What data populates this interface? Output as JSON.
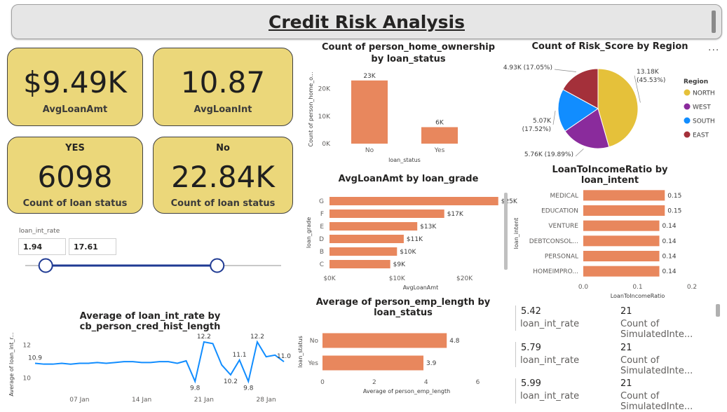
{
  "title": "Credit Risk Analysis",
  "cards": [
    {
      "value": "$9.49K",
      "label": "AvgLoanAmt"
    },
    {
      "value": "10.87",
      "label": "AvgLoanInt"
    },
    {
      "header": "YES",
      "value": "6098",
      "label": "Count of loan status"
    },
    {
      "header": "No",
      "value": "22.84K",
      "label": "Count of loan status"
    }
  ],
  "slider": {
    "label": "loan_int_rate",
    "min_value": "1.94",
    "max_value": "17.61",
    "min_fraction": 0.08,
    "max_fraction": 0.75
  },
  "more_options": "...",
  "kv_list": [
    {
      "value1": "5.42",
      "label1": "loan_int_rate",
      "value2": "21",
      "label2": "Count of SimulatedInte..."
    },
    {
      "value1": "5.79",
      "label1": "loan_int_rate",
      "value2": "21",
      "label2": "Count of SimulatedInte..."
    },
    {
      "value1": "5.99",
      "label1": "loan_int_rate",
      "value2": "21",
      "label2": "Count of SimulatedInte..."
    }
  ],
  "colors": {
    "bar": "#e8875d",
    "line": "#118dff",
    "card": "#ebd77a",
    "north": "#e5c13a",
    "west": "#8a2b9c",
    "south": "#118dff",
    "east": "#a4303a"
  },
  "chart_data": [
    {
      "id": "home_ownership",
      "type": "bar",
      "title": "Count of person_home_ownership by loan_status",
      "xlabel": "loan_status",
      "ylabel": "Count of person_home_o...",
      "categories": [
        "No",
        "Yes"
      ],
      "values": [
        23000,
        6000
      ],
      "data_labels": [
        "23K",
        "6K"
      ],
      "ylim": [
        0,
        25000
      ],
      "yticks": [
        0,
        10000,
        20000
      ],
      "ytick_labels": [
        "0K",
        "10K",
        "20K"
      ]
    },
    {
      "id": "risk_region",
      "type": "pie",
      "title": "Count of Risk_Score by Region",
      "legend_title": "Region",
      "legend_position": "right",
      "slices": [
        {
          "name": "NORTH",
          "value": 13180,
          "label": "13.18K (45.53%)"
        },
        {
          "name": "WEST",
          "value": 5760,
          "label": "5.76K (19.89%)"
        },
        {
          "name": "SOUTH",
          "value": 5070,
          "label": "5.07K (17.52%)"
        },
        {
          "name": "EAST",
          "value": 4930,
          "label": "4.93K (17.05%)"
        }
      ]
    },
    {
      "id": "loan_grade",
      "type": "bar",
      "orientation": "horizontal",
      "title": "AvgLoanAmt by loan_grade",
      "xlabel": "AvgLoanAmt",
      "ylabel": "loan_grade",
      "categories": [
        "G",
        "F",
        "E",
        "D",
        "B",
        "C"
      ],
      "values": [
        25000,
        17000,
        13000,
        11000,
        10000,
        9000
      ],
      "data_labels": [
        "$25K",
        "$17K",
        "$13K",
        "$11K",
        "$10K",
        "$9K"
      ],
      "xlim": [
        0,
        27000
      ],
      "xticks": [
        0,
        10000,
        20000
      ],
      "xtick_labels": [
        "$0K",
        "$10K",
        "$20K"
      ]
    },
    {
      "id": "loan_intent",
      "type": "bar",
      "orientation": "horizontal",
      "title": "LoanToIncomeRatio by loan_intent",
      "xlabel": "LoanToIncomeRatio",
      "ylabel": "loan_intent",
      "categories": [
        "MEDICAL",
        "EDUCATION",
        "VENTURE",
        "DEBTCONSOL...",
        "PERSONAL",
        "HOMEIMPRO..."
      ],
      "values": [
        0.15,
        0.15,
        0.14,
        0.14,
        0.14,
        0.14
      ],
      "data_labels": [
        "0.15",
        "0.15",
        "0.14",
        "0.14",
        "0.14",
        "0.14"
      ],
      "xlim": [
        0,
        0.2
      ],
      "xticks": [
        0,
        0.1,
        0.2
      ],
      "xtick_labels": [
        "0.0",
        "0.1",
        "0.2"
      ]
    },
    {
      "id": "cred_hist",
      "type": "line",
      "title": "Average of loan_int_rate by cb_person_cred_hist_length",
      "ylabel": "Average of loan_int_r...",
      "x": [
        "02 Jan",
        "03 Jan",
        "04 Jan",
        "05 Jan",
        "06 Jan",
        "07 Jan",
        "08 Jan",
        "09 Jan",
        "10 Jan",
        "11 Jan",
        "12 Jan",
        "13 Jan",
        "14 Jan",
        "15 Jan",
        "16 Jan",
        "17 Jan",
        "18 Jan",
        "19 Jan",
        "20 Jan",
        "21 Jan",
        "22 Jan",
        "23 Jan",
        "24 Jan",
        "25 Jan",
        "26 Jan",
        "27 Jan",
        "28 Jan",
        "29 Jan",
        "30 Jan"
      ],
      "values": [
        10.9,
        10.85,
        10.85,
        10.9,
        10.85,
        10.9,
        10.9,
        10.95,
        10.9,
        10.95,
        11.0,
        11.0,
        10.95,
        10.95,
        11.0,
        11.0,
        10.9,
        11.05,
        9.8,
        12.2,
        12.1,
        10.8,
        10.2,
        11.1,
        9.8,
        12.2,
        11.3,
        11.4,
        11.0
      ],
      "point_labels": [
        {
          "index": 0,
          "text": "10.9"
        },
        {
          "index": 18,
          "text": "9.8"
        },
        {
          "index": 19,
          "text": "12.2"
        },
        {
          "index": 22,
          "text": "10.2"
        },
        {
          "index": 23,
          "text": "11.1"
        },
        {
          "index": 24,
          "text": "9.8"
        },
        {
          "index": 25,
          "text": "12.2"
        },
        {
          "index": 28,
          "text": "11.0"
        }
      ],
      "ylim": [
        9.3,
        12.8
      ],
      "yticks": [
        10,
        12
      ],
      "ytick_labels": [
        "10",
        "12"
      ],
      "xtick_labels": [
        {
          "index": 5,
          "text": "07 Jan"
        },
        {
          "index": 12,
          "text": "14 Jan"
        },
        {
          "index": 19,
          "text": "21 Jan"
        },
        {
          "index": 26,
          "text": "28 Jan"
        }
      ]
    },
    {
      "id": "emp_length",
      "type": "bar",
      "orientation": "horizontal",
      "title": "Average of person_emp_length by loan_status",
      "xlabel": "Average of person_emp_length",
      "ylabel": "loan_status",
      "categories": [
        "No",
        "Yes"
      ],
      "values": [
        4.8,
        3.9
      ],
      "data_labels": [
        "4.8",
        "3.9"
      ],
      "xlim": [
        0,
        6.5
      ],
      "xticks": [
        0,
        2,
        4,
        6
      ],
      "xtick_labels": [
        "0",
        "2",
        "4",
        "6"
      ]
    }
  ]
}
